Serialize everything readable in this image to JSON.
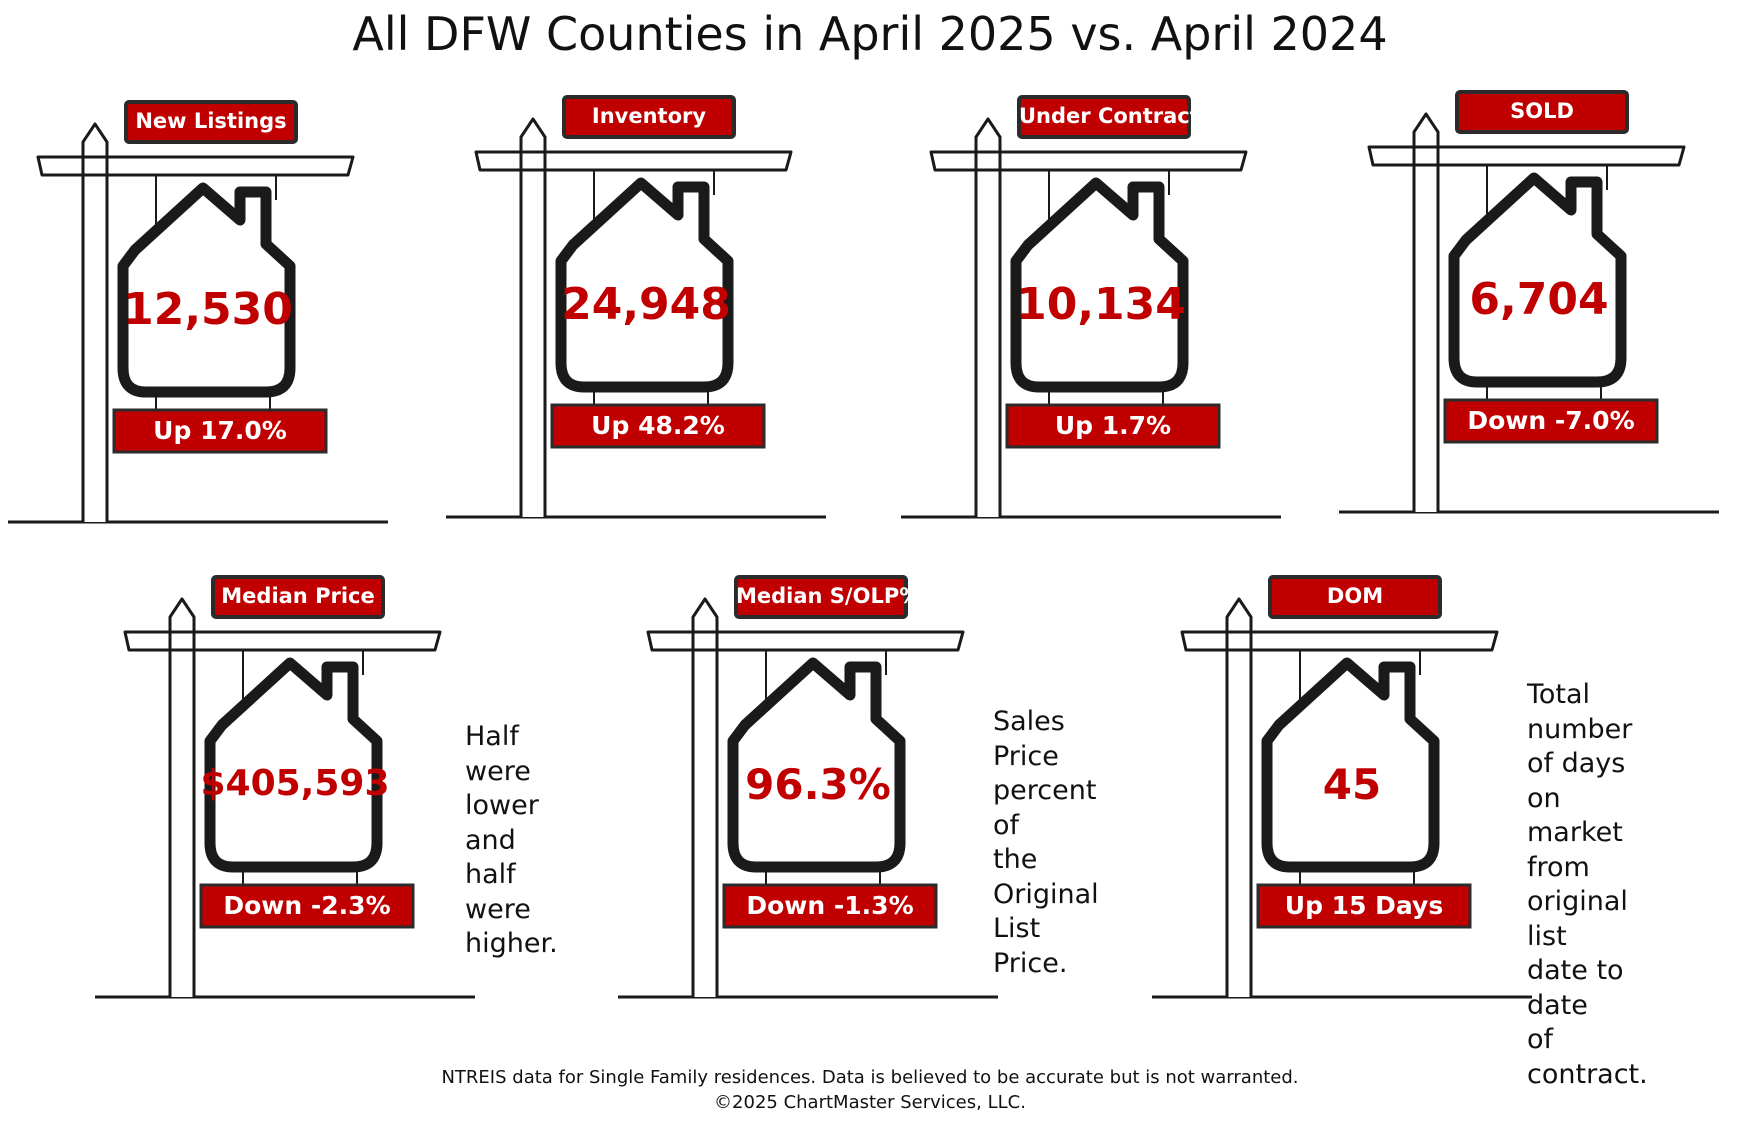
{
  "title": "All DFW Counties in April 2025 vs. April 2024",
  "signs": [
    {
      "label": "New Listings",
      "value": "12,530",
      "change": "Up 17.0%"
    },
    {
      "label": "Inventory",
      "value": "24,948",
      "change": "Up 48.2%"
    },
    {
      "label": "Under Contract",
      "value": "10,134",
      "change": "Up 1.7%"
    },
    {
      "label": "SOLD",
      "value": "6,704",
      "change": "Down -7.0%"
    },
    {
      "label": "Median Price",
      "value": "$405,593",
      "change": "Down -2.3%",
      "note": [
        "Half were",
        "lower and",
        "half were",
        "higher."
      ]
    },
    {
      "label": "Median S/OLP%",
      "value": "96.3%",
      "change": "Down -1.3%",
      "note": [
        "Sales Price",
        "percent of",
        "the Original",
        "List Price."
      ]
    },
    {
      "label": "DOM",
      "value": "45",
      "change": "Up 15 Days",
      "note": [
        "Total number",
        "of days on",
        "market from",
        "original list",
        "date to date",
        "of contract."
      ]
    }
  ],
  "footer": {
    "source": "NTREIS data for Single Family residences.  Data is believed to be accurate but is not warranted.",
    "copyright": "©2025  ChartMaster Services, LLC."
  },
  "colors": {
    "accent": "#c00000",
    "outline": "#1a1a1a",
    "label_border": "#2b2b2b"
  }
}
